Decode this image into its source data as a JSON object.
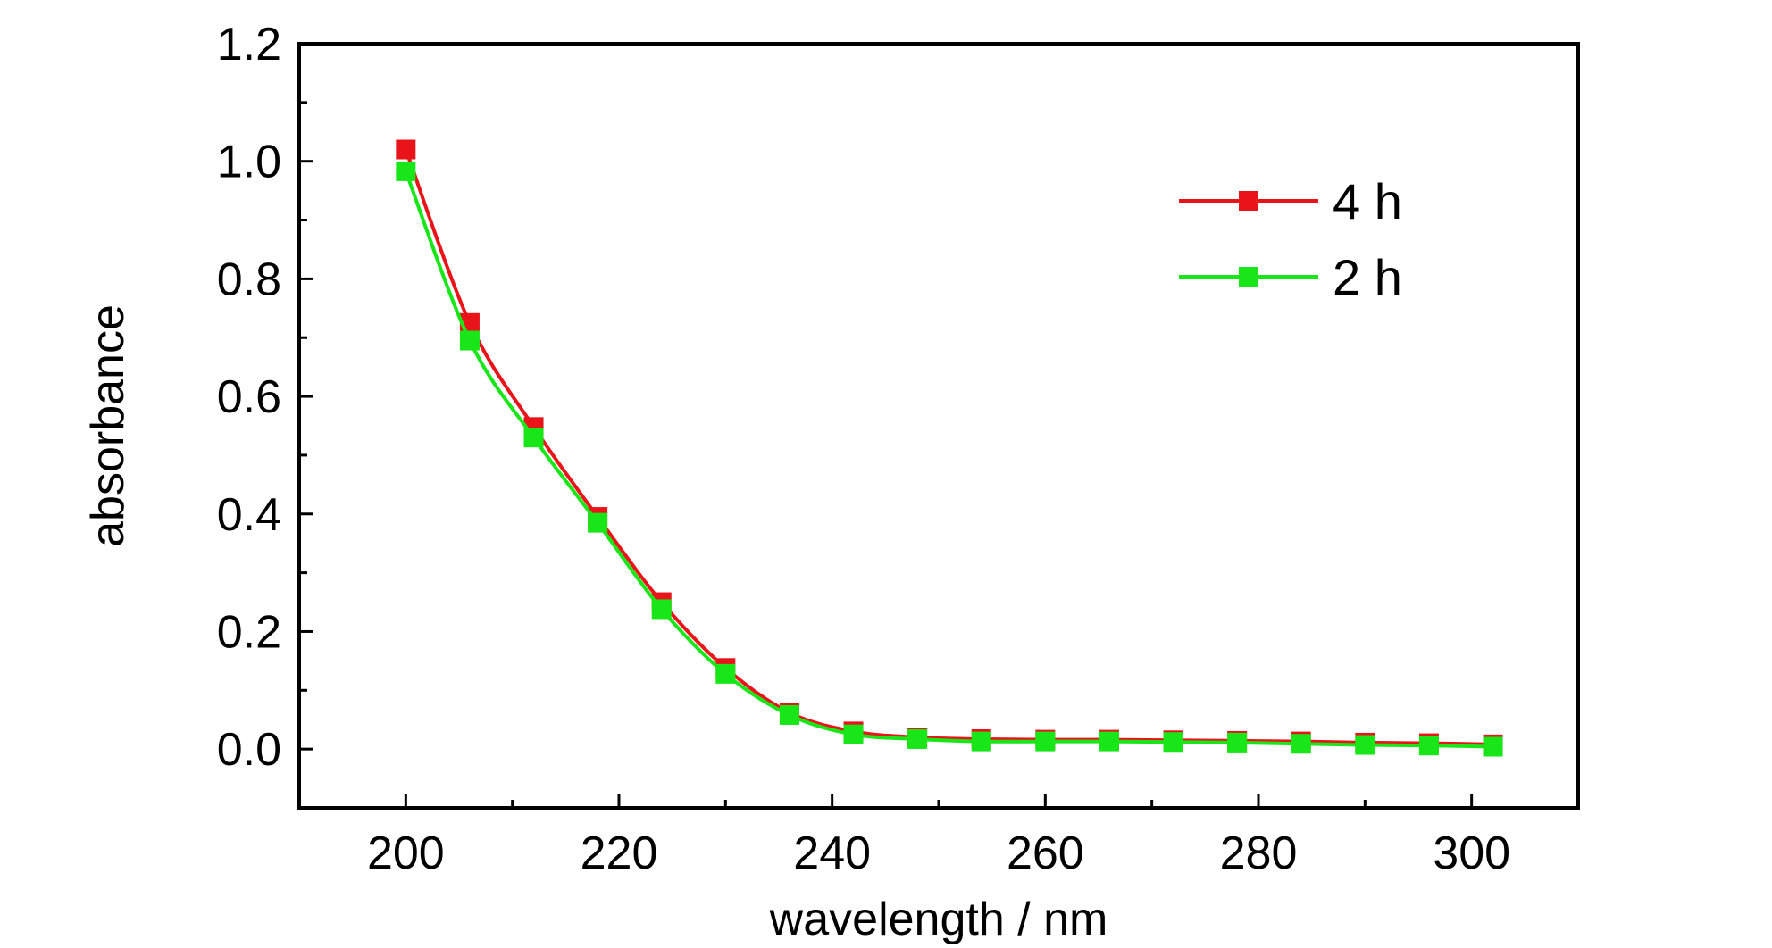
{
  "chart_data": {
    "type": "line",
    "title": "",
    "xlabel": "wavelength / nm",
    "ylabel": "absorbance",
    "xlim": [
      190,
      310
    ],
    "ylim": [
      -0.1,
      1.2
    ],
    "x_ticks": [
      "200",
      "220",
      "240",
      "260",
      "280",
      "300"
    ],
    "y_ticks": [
      "0.0",
      "0.2",
      "0.4",
      "0.6",
      "0.8",
      "1.0",
      "1.2"
    ],
    "grid": false,
    "legend_position": "top-right",
    "x": [
      200,
      206,
      212,
      218,
      224,
      230,
      236,
      242,
      248,
      254,
      260,
      266,
      272,
      278,
      284,
      290,
      296,
      302
    ],
    "series": [
      {
        "name": "4 h",
        "color": "#e8141a",
        "marker": "square",
        "values": [
          1.02,
          0.725,
          0.548,
          0.395,
          0.25,
          0.138,
          0.062,
          0.03,
          0.02,
          0.017,
          0.016,
          0.016,
          0.015,
          0.014,
          0.013,
          0.011,
          0.01,
          0.008
        ]
      },
      {
        "name": "2 h",
        "color": "#19e619",
        "marker": "square",
        "values": [
          0.983,
          0.695,
          0.53,
          0.385,
          0.238,
          0.128,
          0.058,
          0.025,
          0.017,
          0.013,
          0.013,
          0.013,
          0.012,
          0.011,
          0.009,
          0.007,
          0.006,
          0.004
        ]
      }
    ]
  }
}
